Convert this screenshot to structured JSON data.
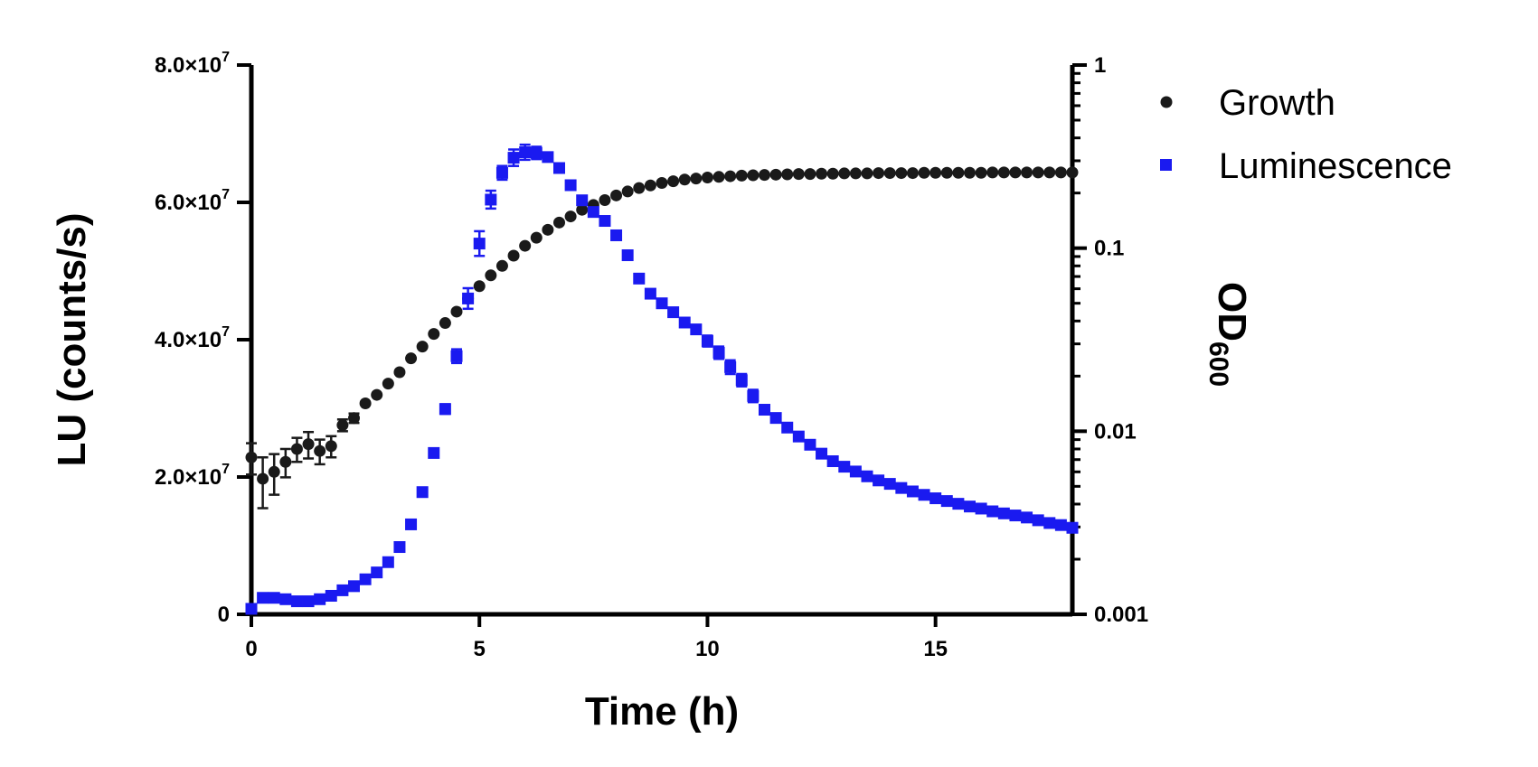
{
  "chart_data": {
    "type": "scatter",
    "xlabel": "Time (h)",
    "ylabel_left": "LU (counts/s)",
    "ylabel_right_main": "OD",
    "ylabel_right_sub": "600",
    "xlim": [
      0,
      18
    ],
    "x_ticks": [
      {
        "value": 0,
        "label": "0"
      },
      {
        "value": 5,
        "label": "5"
      },
      {
        "value": 10,
        "label": "10"
      },
      {
        "value": 15,
        "label": "15"
      }
    ],
    "ylim_left": [
      0,
      80000000
    ],
    "y_left_ticks": [
      {
        "value": 0,
        "label_main": "0",
        "label_exp": ""
      },
      {
        "value": 20000000,
        "label_main": "2.0×10",
        "label_exp": "7"
      },
      {
        "value": 40000000,
        "label_main": "4.0×10",
        "label_exp": "7"
      },
      {
        "value": 60000000,
        "label_main": "6.0×10",
        "label_exp": "7"
      },
      {
        "value": 80000000,
        "label_main": "8.0×10",
        "label_exp": "7"
      }
    ],
    "ylim_right": [
      0.001,
      1
    ],
    "y_right_scale": "log",
    "y_right_ticks": [
      {
        "value": 0.001,
        "label": "0.001"
      },
      {
        "value": 0.01,
        "label": "0.01"
      },
      {
        "value": 0.1,
        "label": "0.1"
      },
      {
        "value": 1,
        "label": "1"
      }
    ],
    "legend_position": "top-right",
    "series": [
      {
        "name": "Growth",
        "axis": "right",
        "marker": "circle",
        "color": "#1a1a1a",
        "x": [
          0,
          0.25,
          0.5,
          0.75,
          1,
          1.25,
          1.5,
          1.75,
          2,
          2.25,
          2.5,
          2.75,
          3,
          3.25,
          3.5,
          3.75,
          4,
          4.25,
          4.5,
          4.75,
          5,
          5.25,
          5.5,
          5.75,
          6,
          6.25,
          6.5,
          6.75,
          7,
          7.25,
          7.5,
          7.75,
          8,
          8.25,
          8.5,
          8.75,
          9,
          9.25,
          9.5,
          9.75,
          10,
          10.25,
          10.5,
          10.75,
          11,
          11.25,
          11.5,
          11.75,
          12,
          12.25,
          12.5,
          12.75,
          13,
          13.25,
          13.5,
          13.75,
          14,
          14.25,
          14.5,
          14.75,
          15,
          15.25,
          15.5,
          15.75,
          16,
          16.25,
          16.5,
          16.75,
          17,
          17.25,
          17.5,
          17.75,
          18
        ],
        "y": [
          0.0072,
          0.0055,
          0.006,
          0.0068,
          0.008,
          0.0085,
          0.0078,
          0.0083,
          0.0108,
          0.0118,
          0.0142,
          0.0158,
          0.0182,
          0.021,
          0.025,
          0.029,
          0.034,
          0.039,
          0.045,
          0.053,
          0.062,
          0.071,
          0.08,
          0.091,
          0.103,
          0.114,
          0.126,
          0.138,
          0.149,
          0.162,
          0.172,
          0.183,
          0.194,
          0.204,
          0.213,
          0.22,
          0.227,
          0.232,
          0.237,
          0.24,
          0.243,
          0.245,
          0.247,
          0.249,
          0.25,
          0.251,
          0.252,
          0.253,
          0.254,
          0.254,
          0.255,
          0.255,
          0.256,
          0.256,
          0.256,
          0.257,
          0.257,
          0.257,
          0.257,
          0.258,
          0.258,
          0.258,
          0.258,
          0.258,
          0.258,
          0.259,
          0.259,
          0.259,
          0.259,
          0.259,
          0.259,
          0.259,
          0.259
        ],
        "err": [
          0.0014,
          0.0017,
          0.0015,
          0.0012,
          0.0012,
          0.0014,
          0.0012,
          0.0011,
          0.0008,
          0.0007,
          0,
          0,
          0,
          0,
          0,
          0,
          0,
          0,
          0,
          0,
          0,
          0,
          0,
          0,
          0,
          0,
          0,
          0,
          0,
          0,
          0,
          0,
          0,
          0,
          0,
          0,
          0,
          0,
          0,
          0,
          0,
          0,
          0,
          0,
          0,
          0,
          0,
          0,
          0,
          0,
          0,
          0,
          0,
          0,
          0,
          0,
          0,
          0,
          0,
          0,
          0,
          0,
          0,
          0,
          0,
          0,
          0,
          0,
          0,
          0,
          0,
          0,
          0
        ]
      },
      {
        "name": "Luminescence",
        "axis": "left",
        "marker": "square",
        "color": "#1a1af0",
        "x": [
          0,
          0.25,
          0.5,
          0.75,
          1,
          1.25,
          1.5,
          1.75,
          2,
          2.25,
          2.5,
          2.75,
          3,
          3.25,
          3.5,
          3.75,
          4,
          4.25,
          4.5,
          4.75,
          5,
          5.25,
          5.5,
          5.75,
          6,
          6.25,
          6.5,
          6.75,
          7,
          7.25,
          7.5,
          7.75,
          8,
          8.25,
          8.5,
          8.75,
          9,
          9.25,
          9.5,
          9.75,
          10,
          10.25,
          10.5,
          10.75,
          11,
          11.25,
          11.5,
          11.75,
          12,
          12.25,
          12.5,
          12.75,
          13,
          13.25,
          13.5,
          13.75,
          14,
          14.25,
          14.5,
          14.75,
          15,
          15.25,
          15.5,
          15.75,
          16,
          16.25,
          16.5,
          16.75,
          17,
          17.25,
          17.5,
          17.75,
          18
        ],
        "y": [
          800000,
          2400000,
          2400000,
          2200000,
          1900000,
          1900000,
          2200000,
          2700000,
          3500000,
          4100000,
          5100000,
          6100000,
          7600000,
          9800000,
          13100000,
          17800000,
          23500000,
          29900000,
          37600000,
          46000000,
          54000000,
          60400000,
          64300000,
          66500000,
          67300000,
          67200000,
          66600000,
          65000000,
          62500000,
          60300000,
          58600000,
          57300000,
          55200000,
          52300000,
          48900000,
          46700000,
          45300000,
          44000000,
          42500000,
          41500000,
          39800000,
          38100000,
          36000000,
          34100000,
          31800000,
          29800000,
          28600000,
          27200000,
          25900000,
          24700000,
          23400000,
          22300000,
          21500000,
          20800000,
          20100000,
          19500000,
          19000000,
          18400000,
          17900000,
          17400000,
          16900000,
          16500000,
          16100000,
          15700000,
          15400000,
          15000000,
          14700000,
          14400000,
          14100000,
          13700000,
          13300000,
          13000000,
          12600000
        ],
        "err": [
          0,
          0,
          0,
          0,
          0,
          0,
          0,
          0,
          0,
          0,
          0,
          0,
          0,
          0,
          0,
          0,
          0,
          700000,
          1000000,
          1500000,
          1800000,
          1300000,
          1000000,
          1200000,
          1100000,
          900000,
          0,
          0,
          0,
          0,
          0,
          0,
          0,
          0,
          0,
          0,
          0,
          0,
          0,
          0,
          800000,
          900000,
          1000000,
          900000,
          900000,
          0,
          0,
          0,
          0,
          0,
          0,
          0,
          0,
          0,
          0,
          0,
          0,
          0,
          0,
          0,
          0,
          0,
          0,
          0,
          0,
          0,
          0,
          0,
          0,
          0,
          0,
          0,
          0
        ]
      }
    ]
  }
}
